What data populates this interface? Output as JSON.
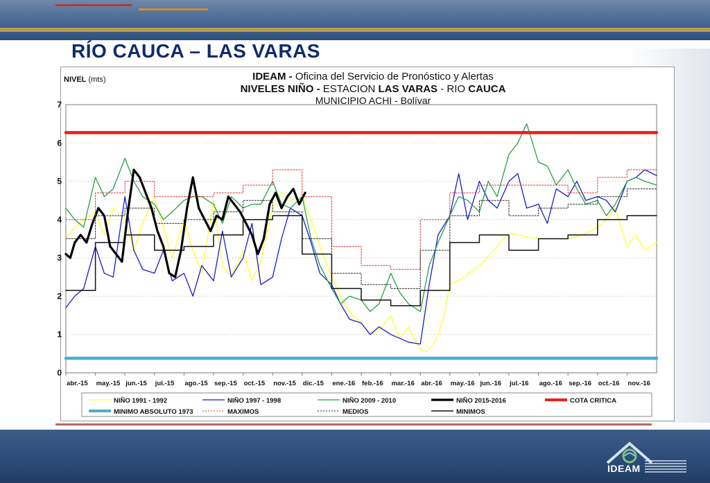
{
  "slide": {
    "title": "RÍO CAUCA – LAS VARAS"
  },
  "chart_data": {
    "type": "line",
    "title_lines": [
      [
        "IDEAM - ",
        "Oficina del Servicio de Pronóstico y Alertas"
      ],
      [
        "NIVELES NIÑO - ",
        "ESTACION ",
        "LAS VARAS",
        " - RIO ",
        "CAUCA"
      ],
      [
        "MUNICIPIO ACHI - Bolívar"
      ]
    ],
    "ylabel": "NIVEL",
    "ylabel_unit": "(mts)",
    "ylim": [
      0,
      7
    ],
    "yticks": [
      0,
      1,
      2,
      3,
      4,
      5,
      6,
      7
    ],
    "x_tick_labels": [
      "abr.-15",
      "may.-15",
      "jun.-15",
      "jul.-15",
      "ago.-15",
      "sep.-15",
      "oct.-15",
      "nov.-15",
      "dic.-15",
      "ene.-16",
      "feb.-16",
      "mar.-16",
      "abr.-16",
      "may.-16",
      "jun.-16",
      "jul.-16",
      "ago.-16",
      "sep.-16",
      "oct.-16",
      "nov.-16"
    ],
    "x_month_index_range": [
      0,
      20
    ],
    "grid": "horizontal-dotted",
    "legend_position": "bottom",
    "series": [
      {
        "name": "NIÑO 1991 - 1992",
        "color": "#ffff33",
        "style": "solid",
        "width": 1.3,
        "x": [
          0,
          0.3,
          0.6,
          1,
          1.3,
          1.6,
          2,
          2.3,
          2.6,
          3,
          3.3,
          3.6,
          4,
          4.3,
          4.6,
          5,
          5.3,
          5.6,
          6,
          6.3,
          6.6,
          7,
          7.3,
          7.6,
          8,
          8.3,
          8.6,
          9,
          9.3,
          9.6,
          10,
          10.3,
          10.6,
          11,
          11.3,
          11.6,
          12,
          12.2,
          12.4,
          12.6,
          12.8,
          13,
          13.5,
          14,
          14.5,
          15,
          15.3,
          15.6,
          16,
          16.5,
          17,
          17.5,
          18,
          18.3,
          18.6,
          19,
          19.3,
          19.6,
          20
        ],
        "values": [
          3.5,
          3.8,
          4.0,
          4.2,
          3.6,
          4.3,
          4.0,
          3.2,
          3.9,
          4.6,
          3.8,
          3.0,
          4.0,
          3.2,
          2.6,
          4.5,
          2.8,
          2.5,
          3.2,
          2.4,
          2.9,
          4.3,
          4.7,
          4.5,
          4.6,
          4.0,
          3.3,
          2.5,
          2.0,
          1.6,
          1.3,
          1.0,
          1.1,
          1.5,
          0.9,
          1.2,
          0.6,
          0.55,
          0.7,
          1.0,
          1.5,
          2.3,
          2.5,
          2.8,
          3.2,
          3.65,
          3.6,
          3.55,
          3.5,
          3.5,
          3.5,
          3.6,
          3.8,
          4.0,
          4.3,
          3.3,
          3.6,
          3.2,
          3.4
        ]
      },
      {
        "name": "NIÑO 1997 - 1998",
        "color": "#1a1acc",
        "style": "solid",
        "width": 1.3,
        "x": [
          0,
          0.3,
          0.6,
          1,
          1.3,
          1.6,
          2,
          2.3,
          2.6,
          3,
          3.3,
          3.6,
          4,
          4.3,
          4.6,
          5,
          5.3,
          5.6,
          6,
          6.3,
          6.6,
          7,
          7.3,
          7.6,
          8,
          8.3,
          8.6,
          9,
          9.3,
          9.6,
          10,
          10.3,
          10.6,
          11,
          11.3,
          11.6,
          12,
          12.3,
          12.6,
          13,
          13.3,
          13.6,
          14,
          14.3,
          14.6,
          15,
          15.3,
          15.6,
          16,
          16.3,
          16.6,
          17,
          17.3,
          17.6,
          18,
          18.3,
          18.6,
          19,
          19.3,
          19.6,
          20
        ],
        "values": [
          1.7,
          2.0,
          2.2,
          3.3,
          2.6,
          2.5,
          4.6,
          3.2,
          2.7,
          2.6,
          3.2,
          2.4,
          2.6,
          2.0,
          2.8,
          2.4,
          3.7,
          2.5,
          3.0,
          3.9,
          2.3,
          2.5,
          3.5,
          4.3,
          4.1,
          3.4,
          2.6,
          2.3,
          1.8,
          1.4,
          1.3,
          1.0,
          1.2,
          1.0,
          0.9,
          0.8,
          0.75,
          2.3,
          3.6,
          4.1,
          5.2,
          4.0,
          5.0,
          4.5,
          4.3,
          5.0,
          5.2,
          4.3,
          4.4,
          3.9,
          4.8,
          4.6,
          5.0,
          4.5,
          4.6,
          4.5,
          4.2,
          5.0,
          5.1,
          5.3,
          5.15
        ]
      },
      {
        "name": "NIÑO 2009 - 2010",
        "color": "#22a04a",
        "style": "solid",
        "width": 1.3,
        "x": [
          0,
          0.3,
          0.6,
          1,
          1.3,
          1.6,
          2,
          2.3,
          2.6,
          3,
          3.3,
          3.6,
          4,
          4.3,
          4.6,
          5,
          5.3,
          5.6,
          6,
          6.3,
          6.6,
          7,
          7.3,
          7.6,
          8,
          8.3,
          8.6,
          9,
          9.3,
          9.6,
          10,
          10.3,
          10.6,
          11,
          11.3,
          11.6,
          12,
          12.3,
          12.6,
          13,
          13.3,
          13.6,
          14,
          14.3,
          14.6,
          15,
          15.3,
          15.6,
          16,
          16.3,
          16.6,
          17,
          17.3,
          17.6,
          18,
          18.3,
          18.6,
          19,
          19.3,
          19.6,
          20
        ],
        "values": [
          4.3,
          4.0,
          3.8,
          5.1,
          4.6,
          4.8,
          5.6,
          5.0,
          4.6,
          4.4,
          4.0,
          4.2,
          4.5,
          4.6,
          4.6,
          4.4,
          3.9,
          4.6,
          4.3,
          4.4,
          4.4,
          5.0,
          4.4,
          4.3,
          4.6,
          3.5,
          2.8,
          2.2,
          1.8,
          2.0,
          1.9,
          1.6,
          1.8,
          2.6,
          2.1,
          1.8,
          1.6,
          2.8,
          3.4,
          4.1,
          4.6,
          4.5,
          4.2,
          5.0,
          4.6,
          5.7,
          6.0,
          6.5,
          5.5,
          5.4,
          4.9,
          5.3,
          4.8,
          4.4,
          4.5,
          4.1,
          4.4,
          5.0,
          5.1,
          5.0,
          4.9
        ]
      },
      {
        "name": "NIÑO 2015-2016",
        "color": "#000000",
        "style": "solid",
        "width": 3.2,
        "x": [
          0,
          0.15,
          0.3,
          0.5,
          0.7,
          0.9,
          1.1,
          1.3,
          1.5,
          1.7,
          1.9,
          2.1,
          2.3,
          2.5,
          2.7,
          2.9,
          3.1,
          3.3,
          3.5,
          3.7,
          3.9,
          4.1,
          4.3,
          4.5,
          4.7,
          4.9,
          5.1,
          5.3,
          5.5,
          5.7,
          5.9,
          6.1,
          6.3,
          6.5,
          6.7,
          6.9,
          7.1,
          7.3,
          7.5,
          7.7,
          7.9,
          8.1
        ],
        "values": [
          3.1,
          3.0,
          3.4,
          3.6,
          3.4,
          3.9,
          4.3,
          4.1,
          3.3,
          3.1,
          2.9,
          4.2,
          5.3,
          5.1,
          4.7,
          4.3,
          3.7,
          3.3,
          2.6,
          2.5,
          3.2,
          4.3,
          5.1,
          4.3,
          4.0,
          3.7,
          4.1,
          4.0,
          4.6,
          4.4,
          4.2,
          3.9,
          3.6,
          3.1,
          3.5,
          4.4,
          4.7,
          4.3,
          4.6,
          4.8,
          4.4,
          4.7
        ]
      },
      {
        "name": "COTA CRITICA",
        "color": "#ee1c1c",
        "style": "solid",
        "width": 4.5,
        "x": [
          0,
          20
        ],
        "values": [
          6.27,
          6.27
        ]
      },
      {
        "name": "MINIMO ABSOLUTO 1973",
        "color": "#4aaecd",
        "style": "solid",
        "width": 4.5,
        "x": [
          0,
          20
        ],
        "values": [
          0.38,
          0.38
        ]
      },
      {
        "name": "MAXIMOS",
        "color": "#e03030",
        "style": "dotted",
        "width": 1.0,
        "step": true,
        "x": [
          0,
          1,
          2,
          3,
          4,
          5,
          6,
          7,
          8,
          9,
          10,
          11,
          12,
          13,
          14,
          15,
          16,
          17,
          18,
          19,
          20
        ],
        "values": [
          4.0,
          4.7,
          5.0,
          4.6,
          4.6,
          4.7,
          4.9,
          5.3,
          4.6,
          3.3,
          2.8,
          2.7,
          4.0,
          4.7,
          4.9,
          4.9,
          4.9,
          4.7,
          5.1,
          5.3,
          5.3
        ]
      },
      {
        "name": "MEDIOS",
        "color": "#222222",
        "style": "dotted",
        "width": 1.0,
        "step": true,
        "x": [
          0,
          1,
          2,
          3,
          4,
          5,
          6,
          7,
          8,
          9,
          10,
          11,
          12,
          13,
          14,
          15,
          16,
          17,
          18,
          19,
          20
        ],
        "values": [
          3.5,
          4.1,
          4.3,
          3.9,
          4.0,
          4.2,
          4.5,
          4.2,
          3.5,
          2.6,
          2.3,
          2.2,
          3.2,
          4.1,
          4.5,
          4.1,
          4.3,
          4.4,
          4.6,
          4.8,
          4.8
        ]
      },
      {
        "name": "MINIMOS",
        "color": "#111111",
        "style": "solid",
        "width": 1.5,
        "step": true,
        "x": [
          0,
          1,
          2,
          3,
          4,
          5,
          6,
          7,
          8,
          9,
          10,
          11,
          12,
          13,
          14,
          15,
          16,
          17,
          18,
          19,
          20
        ],
        "values": [
          2.15,
          3.4,
          3.6,
          3.2,
          3.3,
          3.6,
          4.0,
          4.1,
          3.1,
          2.2,
          1.9,
          1.75,
          2.15,
          3.4,
          3.6,
          3.2,
          3.5,
          3.6,
          4.0,
          4.1,
          4.1
        ]
      }
    ]
  }
}
